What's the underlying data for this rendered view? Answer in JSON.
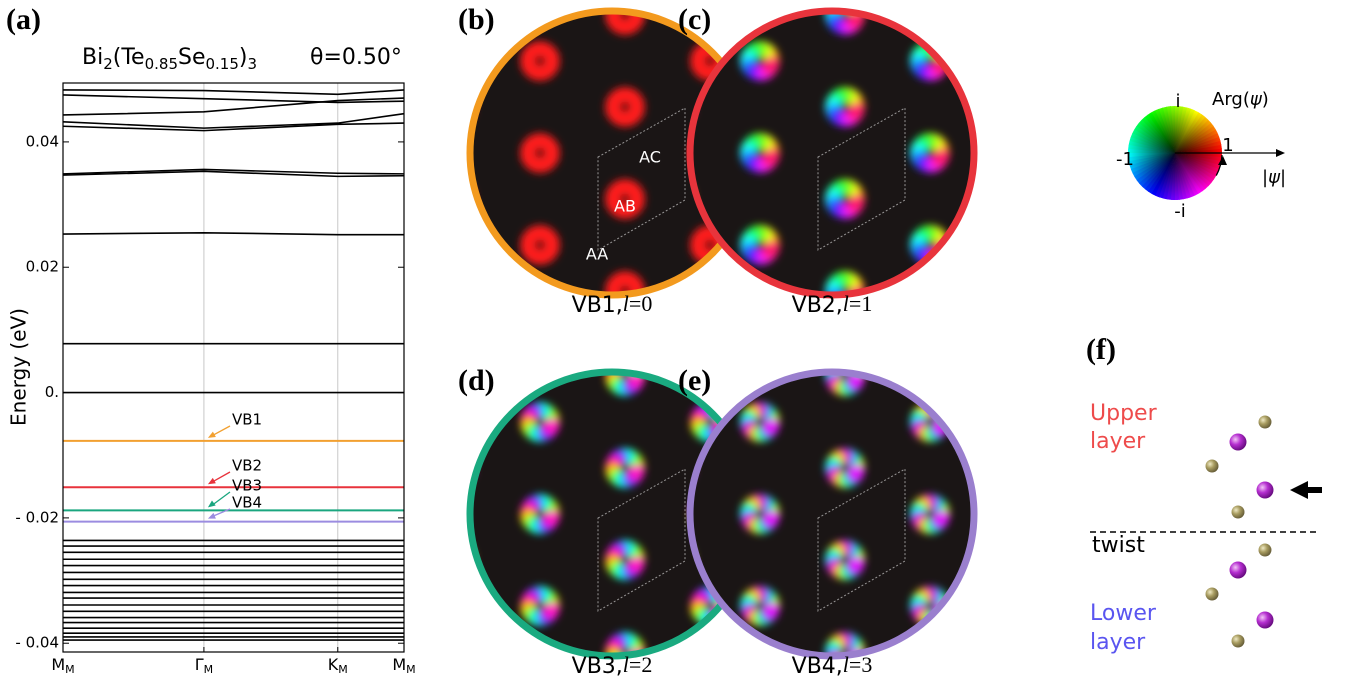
{
  "chart_data": {
    "type": "line",
    "panel_label": "(a)",
    "title_formula": [
      "Bi",
      "2",
      "(Te",
      "0.85",
      "Se",
      "0.15",
      ")",
      "3"
    ],
    "title_angle": "θ=0.50°",
    "ylabel": "Energy (eV)",
    "x": [
      0,
      1,
      1.95,
      2.42
    ],
    "xlim": [
      0,
      2.42
    ],
    "xticks": [
      {
        "value": 0,
        "label": "M",
        "sub": "M"
      },
      {
        "value": 1,
        "label": "Γ",
        "sub": "M"
      },
      {
        "value": 1.95,
        "label": "K",
        "sub": "M"
      },
      {
        "value": 2.42,
        "label": "M",
        "sub": "M"
      }
    ],
    "ylim": [
      -0.0414,
      0.0494
    ],
    "yticks": [
      {
        "value": -0.04,
        "label": "- 0.04"
      },
      {
        "value": -0.02,
        "label": "- 0.02"
      },
      {
        "value": 0,
        "label": "0."
      },
      0.02,
      0.04
    ],
    "grid": true,
    "band_color": "#000000",
    "series": [
      {
        "values": [
          0.0483,
          0.0482,
          0.0476,
          0.0483
        ]
      },
      {
        "values": [
          0.0475,
          0.0469,
          0.0463,
          0.0465
        ]
      },
      {
        "values": [
          0.0443,
          0.0448,
          0.0466,
          0.047
        ]
      },
      {
        "values": [
          0.0432,
          0.0422,
          0.043,
          0.0445
        ]
      },
      {
        "values": [
          0.0425,
          0.0418,
          0.0428,
          0.043
        ]
      },
      {
        "values": [
          0.0349,
          0.0356,
          0.035,
          0.0349
        ]
      },
      {
        "values": [
          0.0347,
          0.0353,
          0.0345,
          0.0346
        ]
      },
      {
        "values": [
          0.0253,
          0.0255,
          0.0252,
          0.0252
        ]
      },
      {
        "values": [
          0.0078,
          0.0078,
          0.0078,
          0.0078
        ]
      },
      {
        "values": [
          0,
          0,
          0,
          0
        ]
      },
      {
        "name": "VB1",
        "color": "#f2a030",
        "values": [
          -0.0077,
          -0.0077,
          -0.0077,
          -0.0077
        ]
      },
      {
        "name": "VB2",
        "color": "#e8333c",
        "values": [
          -0.0151,
          -0.0151,
          -0.0151,
          -0.0151
        ]
      },
      {
        "name": "VB3",
        "color": "#1aa67f",
        "values": [
          -0.0188,
          -0.0188,
          -0.0188,
          -0.0188
        ]
      },
      {
        "name": "VB4",
        "color": "#9b8ce0",
        "values": [
          -0.0206,
          -0.0206,
          -0.0206,
          -0.0206
        ]
      },
      {
        "values": [
          -0.0236,
          -0.0236,
          -0.0236,
          -0.0236
        ]
      },
      {
        "values": [
          -0.0245,
          -0.0245,
          -0.0245,
          -0.0245
        ]
      },
      {
        "values": [
          -0.0255,
          -0.0255,
          -0.0255,
          -0.0255
        ]
      },
      {
        "values": [
          -0.0266,
          -0.0266,
          -0.0266,
          -0.0266
        ]
      },
      {
        "values": [
          -0.0276,
          -0.0276,
          -0.0276,
          -0.0276
        ]
      },
      {
        "values": [
          -0.0287,
          -0.0287,
          -0.0287,
          -0.0287
        ]
      },
      {
        "values": [
          -0.0298,
          -0.0298,
          -0.0298,
          -0.0298
        ]
      },
      {
        "values": [
          -0.0308,
          -0.0308,
          -0.0308,
          -0.0308
        ]
      },
      {
        "values": [
          -0.0319,
          -0.0319,
          -0.0319,
          -0.0319
        ]
      },
      {
        "values": [
          -0.0328,
          -0.0328,
          -0.0328,
          -0.0328
        ]
      },
      {
        "values": [
          -0.0339,
          -0.0339,
          -0.0339,
          -0.0339
        ]
      },
      {
        "values": [
          -0.0349,
          -0.0349,
          -0.0349,
          -0.0349
        ]
      },
      {
        "values": [
          -0.0359,
          -0.0359,
          -0.0359,
          -0.0359
        ]
      },
      {
        "values": [
          -0.0367,
          -0.0367,
          -0.0367,
          -0.0367
        ]
      },
      {
        "values": [
          -0.0376,
          -0.0376,
          -0.0376,
          -0.0376
        ]
      },
      {
        "values": [
          -0.0384,
          -0.0384,
          -0.0384,
          -0.0384
        ]
      },
      {
        "values": [
          -0.039,
          -0.039,
          -0.039,
          -0.039
        ]
      },
      {
        "values": [
          -0.0395,
          -0.0395,
          -0.0395,
          -0.0395
        ]
      }
    ]
  },
  "panels": [
    {
      "label": "(b)",
      "band": "VB1,",
      "var": "l",
      "eq": "=",
      "l": 0,
      "color": "#f39a1e",
      "sites": [
        "AA",
        "AB",
        "AC"
      ]
    },
    {
      "label": "(c)",
      "band": "VB2,",
      "var": "l",
      "eq": "=",
      "l": 1,
      "color": "#e8343c"
    },
    {
      "label": "(d)",
      "band": "VB3,",
      "var": "l",
      "eq": "=",
      "l": 2,
      "color": "#1aaa80"
    },
    {
      "label": "(e)",
      "band": "VB4,",
      "var": "l",
      "eq": "=",
      "l": 3,
      "color": "#9a7fce"
    }
  ],
  "phase_legend": {
    "i": "i",
    "minus_one": "-1",
    "one": "1",
    "minus_i": "-i",
    "arg": [
      "Arg(",
      "ψ",
      ")"
    ],
    "abs": [
      "|",
      "ψ",
      "|"
    ]
  },
  "structure": {
    "label": "(f)",
    "upper": [
      "Upper",
      "layer"
    ],
    "twist": "twist",
    "lower": [
      "Lower",
      "layer"
    ]
  }
}
